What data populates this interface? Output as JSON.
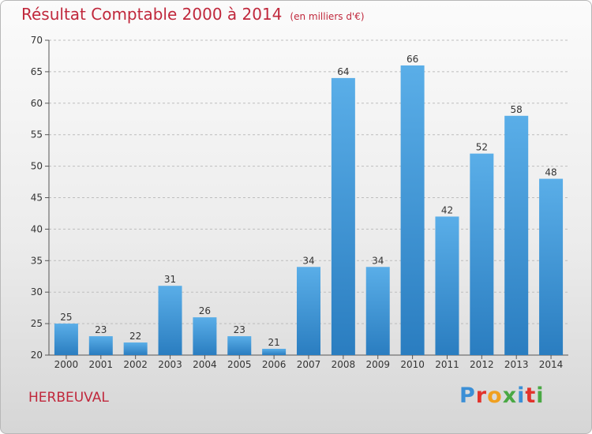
{
  "title": "Résultat Comptable 2000 à 2014",
  "subtitle": "(en milliers d'€)",
  "commune": "HERBEUVAL",
  "logo": {
    "letters": [
      {
        "ch": "P",
        "color": "#3b8fd6"
      },
      {
        "ch": "r",
        "color": "#e2332c"
      },
      {
        "ch": "o",
        "color": "#f0a020"
      },
      {
        "ch": "x",
        "color": "#4aa844"
      },
      {
        "ch": "i",
        "color": "#3b8fd6"
      },
      {
        "ch": "t",
        "color": "#e2332c"
      },
      {
        "ch": "i",
        "color": "#4aa844"
      }
    ]
  },
  "colors": {
    "accent": "#c0283c",
    "bar_top": "#5aaee8",
    "bar_bottom": "#2a7dc0",
    "grid": "#bdbdbd"
  },
  "chart_data": {
    "type": "bar",
    "categories": [
      "2000",
      "2001",
      "2002",
      "2003",
      "2004",
      "2005",
      "2006",
      "2007",
      "2008",
      "2009",
      "2010",
      "2011",
      "2012",
      "2013",
      "2014"
    ],
    "values": [
      25,
      23,
      22,
      31,
      26,
      23,
      21,
      34,
      64,
      34,
      66,
      42,
      52,
      58,
      48
    ],
    "ylim": [
      20,
      70
    ],
    "yticks": [
      20,
      25,
      30,
      35,
      40,
      45,
      50,
      55,
      60,
      65,
      70
    ],
    "grid": true,
    "data_labels": true
  }
}
